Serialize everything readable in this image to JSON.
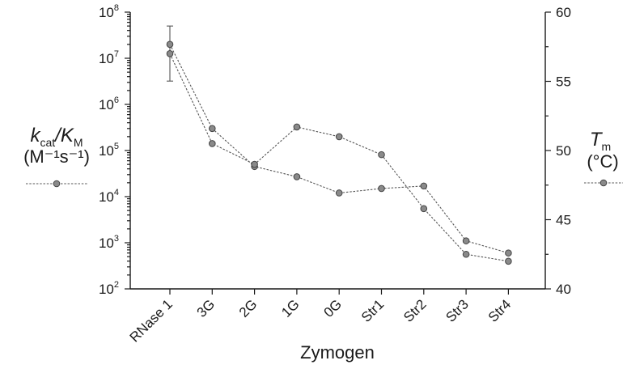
{
  "chart_data": {
    "type": "line",
    "xlabel": "Zymogen",
    "categories": [
      "RNase 1",
      "3G",
      "2G",
      "1G",
      "0G",
      "Str1",
      "Str2",
      "Str3",
      "Str4"
    ],
    "y_left": {
      "label_main": "k",
      "label_main_sub": "cat",
      "label_slash": "/K",
      "label_slash_sub": "M",
      "label_units": "(M⁻¹s⁻¹)",
      "scale": "log",
      "ylim": [
        100,
        100000000
      ],
      "ticks": [
        {
          "value": 100,
          "label": "10",
          "exp": "2"
        },
        {
          "value": 1000,
          "label": "10",
          "exp": "3"
        },
        {
          "value": 10000,
          "label": "10",
          "exp": "4"
        },
        {
          "value": 100000,
          "label": "10",
          "exp": "5"
        },
        {
          "value": 1000000,
          "label": "10",
          "exp": "6"
        },
        {
          "value": 10000000,
          "label": "10",
          "exp": "7"
        },
        {
          "value": 100000000,
          "label": "10",
          "exp": "8"
        }
      ]
    },
    "y_right": {
      "label_main": "T",
      "label_sub": "m",
      "label_units": "(°C)",
      "scale": "linear",
      "ylim": [
        40,
        60
      ],
      "ticks": [
        40,
        45,
        50,
        55,
        60
      ]
    },
    "series": [
      {
        "axis": "left",
        "values": [
          20000000,
          300000,
          45000,
          27000,
          12000,
          15000,
          17000,
          1100,
          600
        ],
        "error": [
          {
            "index": 0,
            "low": 3200000,
            "high": 50000000
          }
        ]
      },
      {
        "axis": "right",
        "values": [
          57.0,
          50.5,
          49.0,
          51.7,
          51.0,
          49.7,
          45.8,
          42.5,
          42.0
        ]
      }
    ],
    "grid": false,
    "marker_color": "#8a8a8a",
    "line_color": "#555555"
  }
}
